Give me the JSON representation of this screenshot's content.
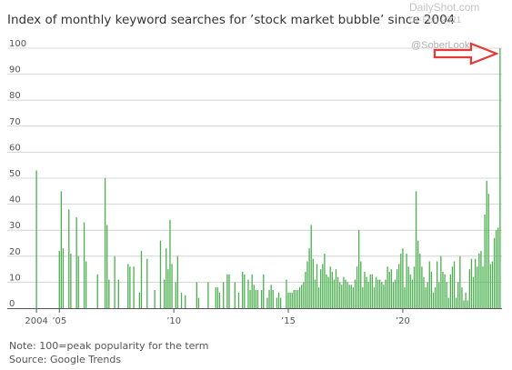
{
  "watermark": {
    "site": "DailyShot.com",
    "date": "01-Feb-2021",
    "handle": "@SoberLook"
  },
  "footer": {
    "note": "Note: 100=peak popularity for the term",
    "source": "Source: Google Trends"
  },
  "colors": {
    "bar": "#4caf50",
    "bar_stroke": "#2e7d32",
    "grid": "#cccccc",
    "arrow": "#e53935"
  },
  "chart_data": {
    "type": "bar",
    "title": "Index of monthly keyword searches for ’stock market bubble’ since 2004",
    "xlabel": "",
    "ylabel": "",
    "ylim": [
      0,
      100
    ],
    "yticks": [
      0,
      10,
      20,
      30,
      40,
      50,
      60,
      70,
      80,
      90,
      100
    ],
    "xtick_labels": [
      {
        "label": "2004",
        "year": 2004
      },
      {
        "label": "’05",
        "year": 2005
      },
      {
        "label": "’10",
        "year": 2010
      },
      {
        "label": "’15",
        "year": 2015
      },
      {
        "label": "’20",
        "year": 2020
      }
    ],
    "start": "2004-01",
    "end": "2021-01",
    "frequency": "monthly",
    "values": [
      53,
      0,
      0,
      0,
      0,
      0,
      0,
      0,
      0,
      0,
      0,
      0,
      22,
      45,
      23,
      0,
      0,
      38,
      21,
      0,
      0,
      35,
      20,
      0,
      0,
      33,
      18,
      0,
      0,
      0,
      0,
      0,
      13,
      0,
      0,
      0,
      50,
      32,
      11,
      0,
      0,
      20,
      0,
      11,
      0,
      0,
      0,
      0,
      17,
      16,
      0,
      16,
      0,
      0,
      6,
      22,
      0,
      0,
      19,
      0,
      0,
      0,
      7,
      0,
      0,
      26,
      0,
      11,
      23,
      15,
      34,
      17,
      0,
      10,
      20,
      0,
      6,
      0,
      5,
      0,
      0,
      0,
      0,
      0,
      10,
      4,
      0,
      0,
      0,
      0,
      10,
      0,
      0,
      0,
      8,
      8,
      6,
      0,
      10,
      0,
      13,
      13,
      0,
      0,
      10,
      0,
      6,
      0,
      14,
      13,
      0,
      11,
      7,
      13,
      9,
      7,
      7,
      0,
      7,
      13,
      0,
      4,
      7,
      9,
      7,
      0,
      4,
      6,
      4,
      0,
      0,
      11,
      6,
      6,
      6,
      7,
      7,
      7,
      8,
      9,
      10,
      14,
      18,
      23,
      32,
      19,
      11,
      17,
      8,
      15,
      17,
      21,
      13,
      12,
      16,
      14,
      11,
      15,
      12,
      10,
      9,
      12,
      11,
      10,
      9,
      9,
      8,
      11,
      16,
      30,
      18,
      8,
      14,
      12,
      10,
      13,
      13,
      8,
      12,
      11,
      11,
      10,
      9,
      11,
      16,
      14,
      15,
      10,
      11,
      15,
      17,
      21,
      23,
      8,
      21,
      16,
      13,
      11,
      16,
      45,
      26,
      21,
      16,
      12,
      8,
      10,
      18,
      14,
      6,
      8,
      18,
      10,
      20,
      14,
      13,
      10,
      4,
      13,
      16,
      18,
      4,
      10,
      20,
      8,
      3,
      6,
      3,
      15,
      19,
      12,
      19,
      16,
      21,
      22,
      16,
      36,
      49,
      44,
      17,
      18,
      27,
      30,
      31,
      100
    ]
  }
}
